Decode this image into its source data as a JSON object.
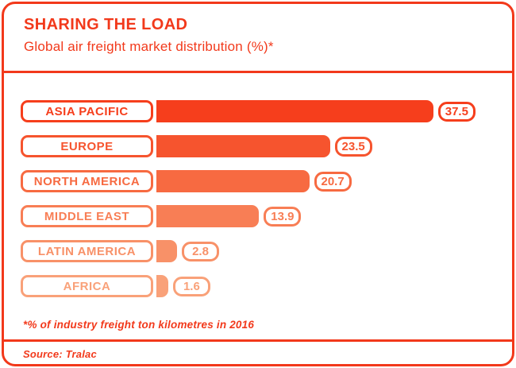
{
  "accent_color": "#F2391B",
  "header": {
    "title": "SHARING THE LOAD",
    "subtitle": "Global air freight market distribution (%)*"
  },
  "chart_data": {
    "type": "bar",
    "orientation": "horizontal",
    "title": "SHARING THE LOAD",
    "subtitle": "Global air freight market distribution (%)*",
    "categories": [
      "ASIA PACIFIC",
      "EUROPE",
      "NORTH AMERICA",
      "MIDDLE EAST",
      "LATIN AMERICA",
      "AFRICA"
    ],
    "values": [
      37.5,
      23.5,
      20.7,
      13.9,
      2.8,
      1.6
    ],
    "value_labels": [
      "37.5",
      "23.5",
      "20.7",
      "13.9",
      "2.8",
      "1.6"
    ],
    "bar_colors": [
      "#F63E1C",
      "#F6542E",
      "#F76A41",
      "#F87E55",
      "#F89168",
      "#F9A179"
    ],
    "xlim": [
      0,
      40
    ],
    "grid": false,
    "legend": false,
    "footnote": "*% of industry freight ton kilometres in 2016",
    "source": "Source: Tralac"
  },
  "footer": {
    "footnote": "*% of industry freight ton kilometres in 2016",
    "source": "Source: Tralac"
  }
}
